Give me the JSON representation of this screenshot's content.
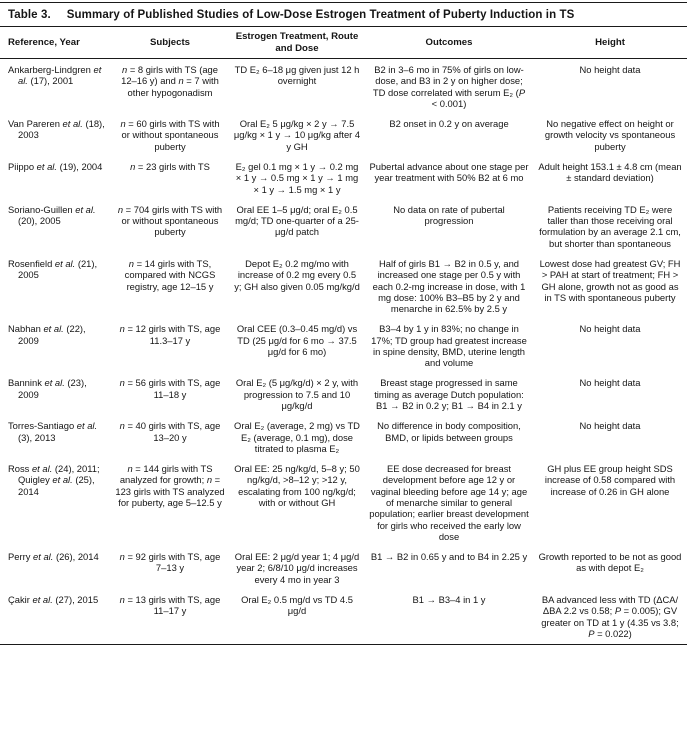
{
  "colors": {
    "background": "#ffffff",
    "text": "#151515",
    "rule": "#1a1a1a"
  },
  "table": {
    "label": "Table 3.",
    "title": "Summary of Published Studies of Low-Dose Estrogen Treatment of Puberty Induction in TS",
    "columns": [
      "Reference, Year",
      "Subjects",
      "Estrogen Treatment, Route and Dose",
      "Outcomes",
      "Height"
    ],
    "rows": [
      {
        "reference": "Ankarberg-Lindgren *et al.* (17), 2001",
        "subjects": "*n* = 8 girls with TS (age 12–16 y) and *n* = 7 with other hypogonadism",
        "treatment": "TD E₂ 6–18 μg given just 12 h overnight",
        "outcomes": "B2 in 3–6 mo in 75% of girls on low-dose, and B3 in 2 y on higher dose; TD dose correlated with serum E₂ (*P* < 0.001)",
        "height": "No height data"
      },
      {
        "reference": "Van Pareren *et al.* (18), 2003",
        "subjects": "*n* = 60 girls with TS with or without spontaneous puberty",
        "treatment": "Oral E₂ 5 μg/kg × 2 y → 7.5 μg/kg × 1 y → 10 μg/kg after 4 y GH",
        "outcomes": "B2 onset in 0.2 y on average",
        "height": "No negative effect on height or growth velocity vs spontaneous puberty"
      },
      {
        "reference": "Piippo *et al.* (19), 2004",
        "subjects": "*n* = 23 girls with TS",
        "treatment": "E₂ gel 0.1 mg × 1 y → 0.2 mg × 1 y → 0.5 mg × 1 y → 1 mg × 1 y → 1.5 mg × 1 y",
        "outcomes": "Pubertal advance about one stage per year treatment with 50% B2 at 6 mo",
        "height": "Adult height 153.1 ± 4.8 cm (mean ± standard deviation)"
      },
      {
        "reference": "Soriano-Guillen *et al.* (20), 2005",
        "subjects": "*n* = 704 girls with TS with or without spontaneous puberty",
        "treatment": "Oral EE 1–5 μg/d; oral E₂ 0.5 mg/d; TD one-quarter of a 25-μg/d patch",
        "outcomes": "No data on rate of pubertal progression",
        "height": "Patients receiving TD E₂ were taller than those receiving oral formulation by an average 2.1 cm, but shorter than spontaneous"
      },
      {
        "reference": "Rosenfield *et al.* (21), 2005",
        "subjects": "*n* = 14 girls with TS, compared with NCGS registry, age 12–15 y",
        "treatment": "Depot E₂ 0.2 mg/mo with increase of 0.2 mg every 0.5 y; GH also given 0.05 mg/kg/d",
        "outcomes": "Half of girls B1 → B2 in 0.5 y, and increased one stage per 0.5 y with each 0.2-mg increase in dose, with 1 mg dose: 100% B3–B5 by 2 y and menarche in 62.5% by 2.5 y",
        "height": "Lowest dose had greatest GV; FH > PAH at start of treatment; FH > GH alone, growth not as good as in TS with spontaneous puberty"
      },
      {
        "reference": "Nabhan *et al.* (22), 2009",
        "subjects": "*n* = 12 girls with TS, age 11.3–17 y",
        "treatment": "Oral CEE (0.3–0.45 mg/d) vs TD (25 μg/d for 6 mo → 37.5 μg/d for 6 mo)",
        "outcomes": "B3–4 by 1 y in 83%; no change in 17%; TD group had greatest increase in spine density, BMD, uterine length and volume",
        "height": "No height data"
      },
      {
        "reference": "Bannink *et al.* (23), 2009",
        "subjects": "*n* = 56 girls with TS, age 11–18 y",
        "treatment": "Oral E₂ (5 μg/kg/d) × 2 y, with progression to 7.5 and 10 μg/kg/d",
        "outcomes": "Breast stage progressed in same timing as average Dutch population: B1 → B2 in 0.2 y; B1 → B4 in 2.1 y",
        "height": "No height data"
      },
      {
        "reference": "Torres-Santiago *et al.* (3), 2013",
        "subjects": "*n* = 40 girls with TS, age 13–20 y",
        "treatment": "Oral E₂ (average, 2 mg) vs TD E₂ (average, 0.1 mg), dose titrated to plasma E₂",
        "outcomes": "No difference in body composition, BMD, or lipids between groups",
        "height": "No height data"
      },
      {
        "reference": "Ross *et al.* (24), 2011; Quigley *et al.* (25), 2014",
        "subjects": "*n* = 144 girls with TS analyzed for growth; *n* = 123 girls with TS analyzed for puberty, age 5–12.5 y",
        "treatment": "Oral EE: 25 ng/kg/d, 5–8 y; 50 ng/kg/d, >8–12 y; >12 y, escalating from 100 ng/kg/d; with or without GH",
        "outcomes": "EE dose decreased for breast development before age 12 y or vaginal bleeding before age 14 y; age of menarche similar to general population; earlier breast development for girls who received the early low dose",
        "height": "GH plus EE group height SDS increase of 0.58 compared with increase of 0.26 in GH alone"
      },
      {
        "reference": "Perry *et al.* (26), 2014",
        "subjects": "*n* = 92 girls with TS, age 7–13 y",
        "treatment": "Oral EE: 2 μg/d year 1; 4 μg/d year 2; 6/8/10 μg/d increases every 4 mo in year 3",
        "outcomes": "B1 → B2 in 0.65 y and to B4 in 2.25 y",
        "height": "Growth reported to be not as good as with depot E₂"
      },
      {
        "reference": "Çakir *et al.* (27), 2015",
        "subjects": "*n* = 13 girls with TS, age 11–17 y",
        "treatment": "Oral E₂ 0.5 mg/d vs TD 4.5 μg/d",
        "outcomes": "B1 → B3–4 in 1 y",
        "height": "BA advanced less with TD (ΔCA/ΔBA 2.2 vs 0.58; *P* = 0.005); GV greater on TD at 1 y (4.35 vs 3.8; *P* = 0.022)"
      }
    ]
  }
}
